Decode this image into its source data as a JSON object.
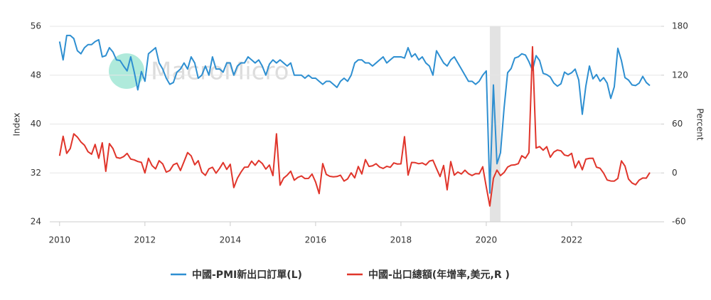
{
  "chart_data": {
    "type": "line",
    "watermark": "MacroMicro",
    "y_label": "Index",
    "y2_label": "Percent",
    "x": [
      2010,
      2010.083,
      2010.167,
      2010.25,
      2010.333,
      2010.417,
      2010.5,
      2010.583,
      2010.667,
      2010.75,
      2010.833,
      2010.917,
      2011,
      2011.083,
      2011.167,
      2011.25,
      2011.333,
      2011.417,
      2011.5,
      2011.583,
      2011.667,
      2011.75,
      2011.833,
      2011.917,
      2012,
      2012.083,
      2012.167,
      2012.25,
      2012.333,
      2012.417,
      2012.5,
      2012.583,
      2012.667,
      2012.75,
      2012.833,
      2012.917,
      2013,
      2013.083,
      2013.167,
      2013.25,
      2013.333,
      2013.417,
      2013.5,
      2013.583,
      2013.667,
      2013.75,
      2013.833,
      2013.917,
      2014,
      2014.083,
      2014.167,
      2014.25,
      2014.333,
      2014.417,
      2014.5,
      2014.583,
      2014.667,
      2014.75,
      2014.833,
      2014.917,
      2015,
      2015.083,
      2015.167,
      2015.25,
      2015.333,
      2015.417,
      2015.5,
      2015.583,
      2015.667,
      2015.75,
      2015.833,
      2015.917,
      2016,
      2016.083,
      2016.167,
      2016.25,
      2016.333,
      2016.417,
      2016.5,
      2016.583,
      2016.667,
      2016.75,
      2016.833,
      2016.917,
      2017,
      2017.083,
      2017.167,
      2017.25,
      2017.333,
      2017.417,
      2017.5,
      2017.583,
      2017.667,
      2017.75,
      2017.833,
      2017.917,
      2018,
      2018.083,
      2018.167,
      2018.25,
      2018.333,
      2018.417,
      2018.5,
      2018.583,
      2018.667,
      2018.75,
      2018.833,
      2018.917,
      2019,
      2019.083,
      2019.167,
      2019.25,
      2019.333,
      2019.417,
      2019.5,
      2019.583,
      2019.667,
      2019.75,
      2019.833,
      2019.917,
      2020,
      2020.083,
      2020.167,
      2020.25,
      2020.333,
      2020.417,
      2020.5,
      2020.583,
      2020.667,
      2020.75,
      2020.833,
      2020.917,
      2021,
      2021.083,
      2021.167,
      2021.25,
      2021.333,
      2021.417,
      2021.5,
      2021.583,
      2021.667,
      2021.75,
      2021.833,
      2021.917,
      2022,
      2022.083,
      2022.167,
      2022.25,
      2022.333,
      2022.417,
      2022.5,
      2022.583,
      2022.667,
      2022.75,
      2022.833,
      2022.917,
      2023,
      2023.083,
      2023.167,
      2023.25,
      2023.333,
      2023.417,
      2023.5,
      2023.583,
      2023.667,
      2023.75,
      2023.833
    ],
    "series": [
      {
        "name": "中國-PMI新出口訂單(L)",
        "color": "#2e8fd1",
        "axis": "y",
        "values": [
          53.5,
          50.5,
          54.5,
          54.5,
          54,
          52,
          51.5,
          52.5,
          53,
          53,
          53.5,
          53.8,
          51,
          51.2,
          52.5,
          51.8,
          50.5,
          50.4,
          49.5,
          48.7,
          51,
          48.5,
          45.6,
          48.6,
          47,
          51.5,
          52,
          52.5,
          50,
          49,
          47.5,
          46.5,
          46.8,
          48.5,
          49,
          50,
          49,
          51,
          50,
          47.5,
          48,
          49.5,
          48,
          51,
          49,
          49,
          48.5,
          50,
          50,
          48,
          49.5,
          50,
          50,
          51,
          50.5,
          50,
          50.5,
          49.5,
          48,
          49.8,
          50.5,
          50,
          50.5,
          50,
          49.5,
          50,
          48,
          48,
          48,
          47.5,
          48,
          47.5,
          47.5,
          47,
          46.5,
          47,
          47,
          46.5,
          46,
          47,
          47.5,
          47,
          48,
          50,
          50.5,
          50.5,
          50,
          50,
          49.5,
          50,
          50.5,
          51,
          50,
          50.5,
          51,
          51,
          51,
          50.8,
          52.5,
          51,
          51.5,
          50.5,
          51,
          50,
          49.5,
          48,
          52,
          51,
          50,
          49.5,
          50.5,
          51,
          50,
          49,
          48,
          47,
          47,
          46.5,
          47,
          48,
          48.7,
          28.7,
          46.4,
          33.5,
          35.3,
          42.6,
          48.4,
          49.1,
          50.8,
          51,
          51.5,
          51.3,
          50.2,
          48.8,
          51.2,
          50.4,
          48.3,
          48.1,
          47.7,
          46.7,
          46.2,
          46.6,
          48.5,
          48.1,
          48.4,
          49,
          47.2,
          41.6,
          46.2,
          49.5,
          47.4,
          48.1,
          47,
          47.6,
          46.7,
          44.2,
          46.1,
          52.4,
          50.4,
          47.6,
          47.2,
          46.4,
          46.3,
          46.7,
          47.8,
          46.8,
          46.3
        ]
      },
      {
        "name": "中國-出口總額(年增率,美元,R )",
        "color": "#e0352b",
        "axis": "y2",
        "values": [
          21,
          45,
          24,
          30,
          48,
          44,
          38,
          34,
          26,
          23,
          35,
          18,
          37,
          2,
          36,
          30,
          19,
          18,
          20,
          24,
          17,
          16,
          14,
          13,
          0,
          18,
          9,
          5,
          15,
          11,
          1,
          3,
          10,
          12,
          3,
          14,
          25,
          21,
          10,
          15,
          1,
          -3,
          5,
          7,
          -0.3,
          5.6,
          12.7,
          4.3,
          10.6,
          -18,
          -6.6,
          0.9,
          7,
          7.2,
          14.5,
          9.4,
          15.3,
          11.6,
          4.7,
          9.7,
          -3.3,
          48,
          -15,
          -6.4,
          -2.8,
          2.1,
          -8.9,
          -5.5,
          -3.7,
          -6.9,
          -6.8,
          -1.4,
          -11.2,
          -25.4,
          11.5,
          -1.8,
          -4.1,
          -4.8,
          -4.4,
          -2.8,
          -10,
          -7.3,
          0.1,
          -6.1,
          7.9,
          -1.3,
          16.4,
          8,
          8.7,
          11.3,
          7.2,
          5.5,
          8.1,
          6.9,
          12.3,
          10.9,
          11.1,
          44.5,
          -2.7,
          12.9,
          12.6,
          11.3,
          12.2,
          9.8,
          14.5,
          15.6,
          5.4,
          -4.4,
          9.1,
          -20.7,
          14,
          -2.7,
          1.1,
          -1.3,
          3.3,
          -1,
          -3.2,
          -0.9,
          -1.1,
          7.6,
          -17.2,
          -40.6,
          -6.6,
          3.5,
          -3.3,
          0.5,
          7.2,
          9.5,
          9.9,
          11.4,
          21.1,
          18.1,
          24.9,
          154.9,
          30.6,
          32.3,
          27.9,
          32.2,
          19.3,
          25.6,
          28.1,
          27.1,
          22,
          20.9,
          24.1,
          6.2,
          14.7,
          3.9,
          16.9,
          17.9,
          18,
          7.1,
          5.7,
          -0.3,
          -8.7,
          -9.9,
          -10,
          -6.8,
          14.8,
          8.5,
          -7.5,
          -12.4,
          -14.5,
          -8.8,
          -6.2,
          -6.4,
          0.5
        ]
      }
    ],
    "shade": [
      2020.083,
      2020.333
    ],
    "xlim": [
      2009.77,
      2024.1
    ],
    "xticks": [
      2010,
      2012,
      2014,
      2016,
      2018,
      2020,
      2022
    ],
    "ylim": [
      24,
      56
    ],
    "yticks": [
      56,
      48,
      40,
      32,
      24
    ],
    "y2lim": [
      -60,
      180
    ],
    "y2ticks": [
      180,
      120,
      60,
      0,
      -60
    ],
    "grid": true
  }
}
